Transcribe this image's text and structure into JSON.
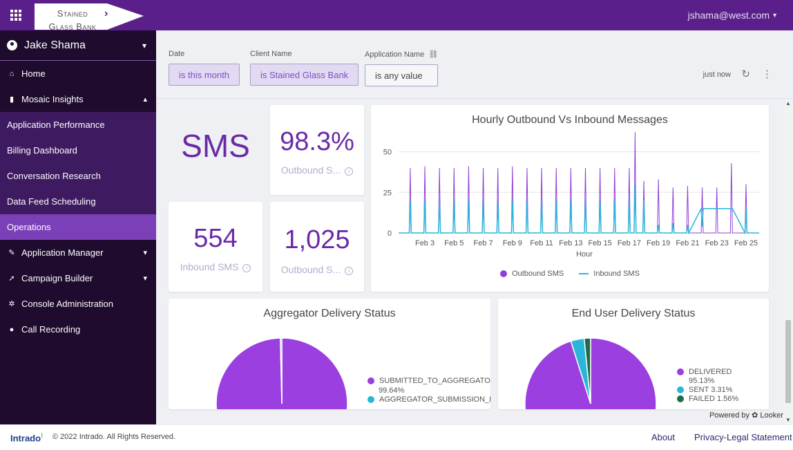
{
  "header": {
    "brand": "Stained Glass Bank",
    "user_email": "jshama@west.com"
  },
  "sidebar": {
    "user_name": "Jake Shama",
    "items": [
      {
        "label": "Home",
        "icon": "home-icon"
      },
      {
        "label": "Mosaic Insights",
        "icon": "bar-chart-icon"
      },
      {
        "label": "Application Performance"
      },
      {
        "label": "Billing Dashboard"
      },
      {
        "label": "Conversation Research"
      },
      {
        "label": "Data Feed Scheduling"
      },
      {
        "label": "Operations"
      },
      {
        "label": "Application Manager",
        "icon": "wrench-icon"
      },
      {
        "label": "Campaign Builder",
        "icon": "rocket-icon"
      },
      {
        "label": "Console Administration",
        "icon": "cog-icon"
      },
      {
        "label": "Call Recording",
        "icon": "microphone-icon"
      }
    ]
  },
  "filters": {
    "date_label": "Date",
    "date_value": "is this month",
    "client_label": "Client Name",
    "client_value": "is Stained Glass Bank",
    "app_label": "Application Name",
    "app_value": "is any value",
    "refreshed": "just now"
  },
  "kpis": {
    "channel": "SMS",
    "outbound_pct": "98.3%",
    "outbound_pct_label": "Outbound S...",
    "inbound_count": "554",
    "inbound_label": "Inbound SMS",
    "outbound_count": "1,025",
    "outbound_count_label": "Outbound S..."
  },
  "hourly_chart": {
    "title": "Hourly Outbound Vs Inbound Messages",
    "xlabel": "Hour",
    "y_ticks": [
      "0",
      "25",
      "50"
    ],
    "x_ticks": [
      "Feb 3",
      "Feb 5",
      "Feb 7",
      "Feb 9",
      "Feb 11",
      "Feb 13",
      "Feb 15",
      "Feb 17",
      "Feb 19",
      "Feb 21",
      "Feb 23",
      "Feb 25"
    ],
    "legend": [
      "Outbound SMS",
      "Inbound SMS"
    ]
  },
  "aggregator_chart": {
    "title": "Aggregator Delivery Status",
    "legend": [
      {
        "label": "SUBMITTED_TO_AGGREGATOR",
        "pct": "99.64%"
      },
      {
        "label": "AGGREGATOR_SUBMISSION_FAIL",
        "pct": ""
      }
    ]
  },
  "enduser_chart": {
    "title": "End User Delivery Status",
    "legend": [
      {
        "label": "DELIVERED",
        "pct": "95.13%"
      },
      {
        "label": "SENT 3.31%",
        "pct": ""
      },
      {
        "label": "FAILED 1.56%",
        "pct": ""
      }
    ]
  },
  "chart_data": [
    {
      "type": "line",
      "title": "Hourly Outbound Vs Inbound Messages",
      "xlabel": "Hour",
      "ylabel": "",
      "ylim": [
        0,
        60
      ],
      "x_ticks": [
        "Feb 3",
        "Feb 5",
        "Feb 7",
        "Feb 9",
        "Feb 11",
        "Feb 13",
        "Feb 15",
        "Feb 17",
        "Feb 19",
        "Feb 21",
        "Feb 23",
        "Feb 25"
      ],
      "series": [
        {
          "name": "Outbound SMS",
          "color": "#8f3fd6",
          "peaks_day": [
            2,
            3,
            4,
            5,
            6,
            7,
            8,
            9,
            10,
            11,
            12,
            13,
            14,
            15,
            16,
            17,
            17.4,
            18,
            19,
            20,
            21,
            22,
            23,
            24,
            25
          ],
          "peaks_value": [
            40,
            41,
            40,
            40,
            41,
            40,
            40,
            41,
            40,
            40,
            40,
            40,
            40,
            40,
            40,
            40,
            62,
            32,
            33,
            28,
            29,
            28,
            28,
            43,
            30
          ]
        },
        {
          "name": "Inbound SMS",
          "color": "#29b6d9",
          "peaks_day": [
            2,
            3,
            4,
            5,
            6,
            7,
            8,
            9,
            10,
            11,
            12,
            13,
            14,
            15,
            16,
            17,
            17.4,
            18,
            19,
            20,
            21,
            22,
            23,
            24,
            25
          ],
          "peaks_value": [
            20,
            20,
            20,
            20,
            20,
            20,
            20,
            20,
            20,
            20,
            20,
            20,
            20,
            20,
            20,
            20,
            30,
            20,
            5,
            6,
            5,
            4,
            15,
            15,
            15
          ]
        }
      ],
      "grid": true,
      "legend_position": "bottom"
    },
    {
      "type": "pie",
      "title": "Aggregator Delivery Status",
      "categories": [
        "SUBMITTED_TO_AGGREGATOR",
        "AGGREGATOR_SUBMISSION_FAIL"
      ],
      "values": [
        99.64,
        0.36
      ],
      "colors": [
        "#9b3fe0",
        "#29b6d9"
      ],
      "legend_position": "right"
    },
    {
      "type": "pie",
      "title": "End User Delivery Status",
      "categories": [
        "DELIVERED",
        "SENT",
        "FAILED"
      ],
      "values": [
        95.13,
        3.31,
        1.56
      ],
      "colors": [
        "#9b3fe0",
        "#29b6d9",
        "#1f6b4a"
      ],
      "legend_position": "right"
    }
  ],
  "footer": {
    "powered_by": "Powered by ✿ Looker",
    "logo": "Intrado",
    "copyright": "© 2022 Intrado. All Rights Reserved.",
    "about": "About",
    "privacy": "Privacy-Legal Statement"
  }
}
